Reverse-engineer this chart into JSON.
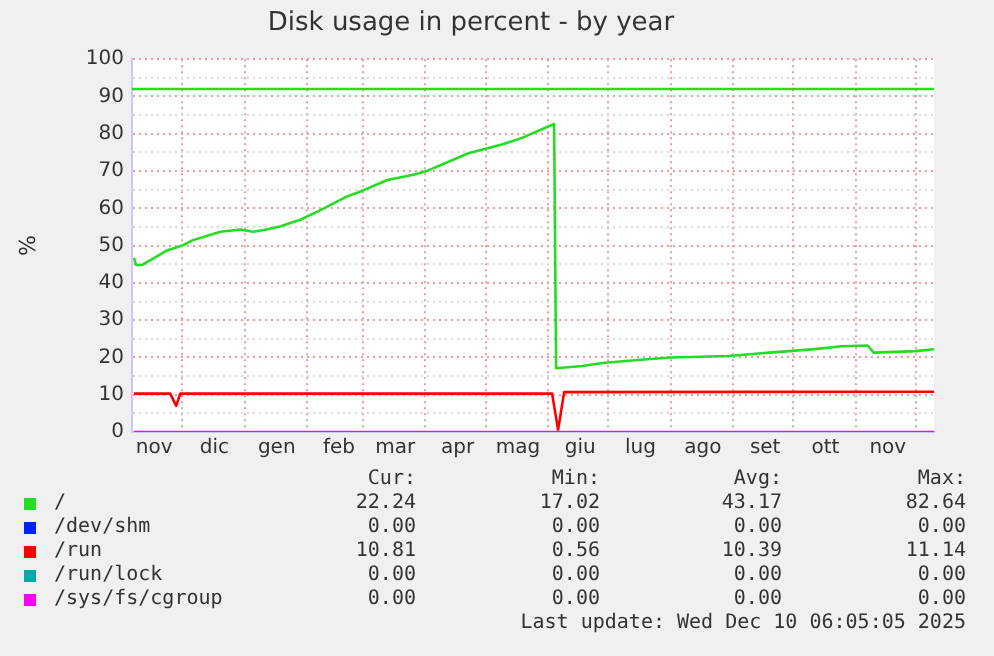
{
  "chart_data": {
    "type": "line",
    "title": "Disk usage in percent - by year",
    "ylabel": "%",
    "xlim": [
      "2024-11-06",
      "2025-12-10"
    ],
    "xticks": [
      {
        "value": "2024-11-17",
        "label": "nov"
      },
      {
        "value": "2024-12-01",
        "label": null
      },
      {
        "value": "2024-12-17",
        "label": "dic"
      },
      {
        "value": "2025-01-01",
        "label": null
      },
      {
        "value": "2025-01-17",
        "label": "gen"
      },
      {
        "value": "2025-02-01",
        "label": null
      },
      {
        "value": "2025-02-17",
        "label": "feb"
      },
      {
        "value": "2025-03-01",
        "label": null
      },
      {
        "value": "2025-03-17",
        "label": "mar"
      },
      {
        "value": "2025-04-01",
        "label": null
      },
      {
        "value": "2025-04-17",
        "label": "apr"
      },
      {
        "value": "2025-05-01",
        "label": null
      },
      {
        "value": "2025-05-17",
        "label": "mag"
      },
      {
        "value": "2025-06-01",
        "label": null
      },
      {
        "value": "2025-06-17",
        "label": "giu"
      },
      {
        "value": "2025-07-01",
        "label": null
      },
      {
        "value": "2025-07-17",
        "label": "lug"
      },
      {
        "value": "2025-08-01",
        "label": null
      },
      {
        "value": "2025-08-17",
        "label": "ago"
      },
      {
        "value": "2025-09-01",
        "label": null
      },
      {
        "value": "2025-09-17",
        "label": "set"
      },
      {
        "value": "2025-10-01",
        "label": null
      },
      {
        "value": "2025-10-17",
        "label": "ott"
      },
      {
        "value": "2025-11-01",
        "label": null
      },
      {
        "value": "2025-11-17",
        "label": "nov"
      },
      {
        "value": "2025-12-01",
        "label": null
      }
    ],
    "ylim": [
      0,
      100
    ],
    "yticks": [
      0,
      {
        "value": 5,
        "label": null
      },
      10,
      {
        "value": 15,
        "label": null
      },
      20,
      {
        "value": 25,
        "label": null
      },
      30,
      {
        "value": 35,
        "label": null
      },
      40,
      {
        "value": 45,
        "label": null
      },
      50,
      {
        "value": 55,
        "label": null
      },
      60,
      {
        "value": 65,
        "label": null
      },
      70,
      {
        "value": 75,
        "label": null
      },
      80,
      {
        "value": 85,
        "label": null
      },
      90,
      {
        "value": 95,
        "label": null
      },
      100
    ],
    "grid": true,
    "legend": "bottom",
    "marker": "none",
    "line_style": "solid",
    "ref_lines": [
      {
        "axis": "y",
        "value": 92,
        "color": "#22dd22"
      }
    ],
    "series": [
      {
        "name": "/",
        "color": "#22dd22",
        "x": [
          "2024-11-07",
          "2024-11-08",
          "2024-11-11",
          "2024-11-18",
          "2024-11-23",
          "2024-12-01",
          "2024-12-06",
          "2024-12-20",
          "2024-12-30",
          "2025-01-05",
          "2025-01-12",
          "2025-01-19",
          "2025-01-29",
          "2025-02-08",
          "2025-02-21",
          "2025-03-01",
          "2025-03-13",
          "2025-03-26",
          "2025-04-02",
          "2025-04-16",
          "2025-04-22",
          "2025-05-09",
          "2025-05-19",
          "2025-06-04",
          "2025-06-05",
          "2025-06-18",
          "2025-06-28",
          "2025-07-17",
          "2025-08-01",
          "2025-08-30",
          "2025-09-19",
          "2025-09-29",
          "2025-10-13",
          "2025-10-25",
          "2025-11-07",
          "2025-11-10",
          "2025-12-01",
          "2025-12-10"
        ],
        "values": [
          46.7,
          44.8,
          44.8,
          47,
          48.6,
          50,
          51.4,
          53.7,
          54.3,
          53.7,
          54.3,
          55.2,
          57,
          59.6,
          63.2,
          64.8,
          67.6,
          69,
          70.1,
          73.3,
          74.7,
          77.1,
          78.9,
          82.6,
          17.1,
          17.7,
          18.5,
          19.4,
          20,
          20.4,
          21.3,
          21.7,
          22.3,
          23,
          23.2,
          21.3,
          21.7,
          22.2
        ]
      },
      {
        "name": "/dev/shm",
        "color": "#0022ff"
      },
      {
        "name": "/run",
        "color": "#ff0000",
        "x": [
          "2024-11-07",
          "2024-11-25",
          "2024-11-28",
          "2024-11-30",
          "2025-06-03",
          "2025-06-06",
          "2025-06-09",
          "2025-12-10"
        ],
        "values": [
          10.3,
          10.3,
          7,
          10.3,
          10.3,
          0.6,
          10.7,
          10.8
        ]
      },
      {
        "name": "/run/lock",
        "color": "#00aaaa"
      },
      {
        "name": "/sys/fs/cgroup",
        "color": "#ff00ff",
        "x": [
          "2024-11-07",
          "2025-12-10"
        ],
        "values": [
          0,
          0
        ]
      }
    ],
    "annotations": [
      "Cur:",
      "Min:",
      "Avg:",
      "Max:",
      "22.24",
      "17.02",
      "43.17",
      "82.64",
      "0.00",
      "0.00",
      "0.00",
      "0.00",
      "10.81",
      "0.56",
      "10.39",
      "11.14",
      "0.00",
      "0.00",
      "0.00",
      "0.00",
      "0.00",
      "0.00",
      "0.00",
      "0.00",
      "Last update: Wed Dec 10 06:05:05 2025"
    ]
  }
}
